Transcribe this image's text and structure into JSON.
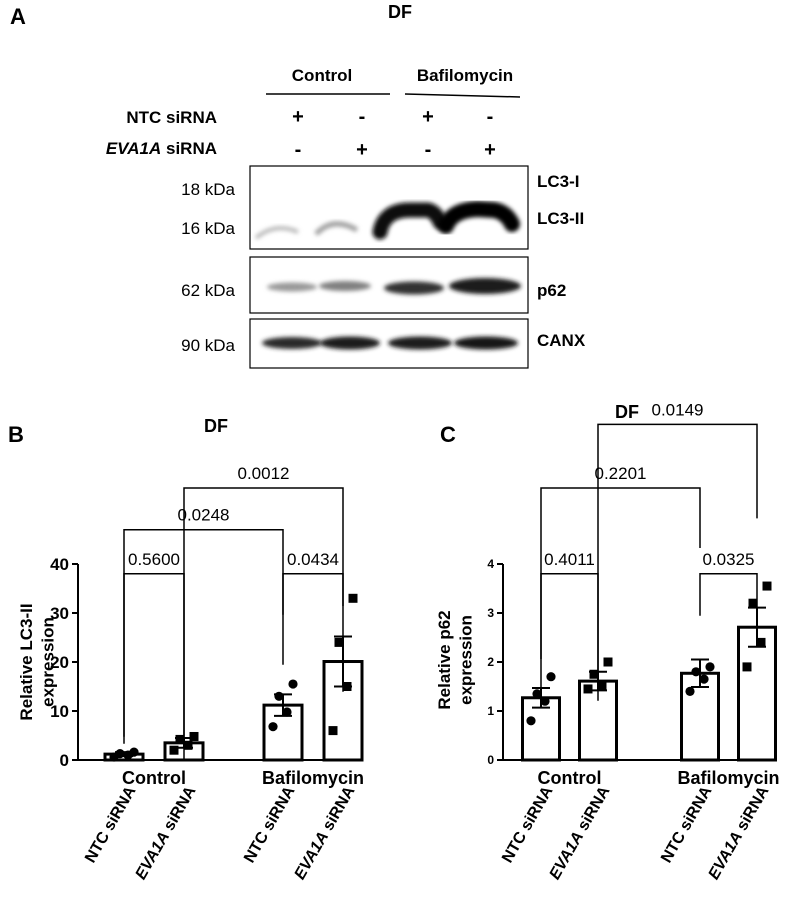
{
  "figure": {
    "panelA": {
      "letter": "A",
      "title": "DF",
      "groups": [
        "Control",
        "Bafilomycin"
      ],
      "row_labels": {
        "ntc": "NTC siRNA",
        "eva_italic": "EVA1A",
        "eva_rest": " siRNA"
      },
      "ntc_signs": [
        "+",
        "-",
        "+",
        "-"
      ],
      "eva_signs": [
        "-",
        "+",
        "-",
        "+"
      ],
      "mw": [
        "18 kDa",
        "16 kDa",
        "62 kDa",
        "90 kDa"
      ],
      "band_labels": [
        "LC3-I",
        "LC3-II",
        "p62",
        "CANX"
      ]
    },
    "panelB": {
      "letter": "B"
    },
    "panelC": {
      "letter": "C"
    }
  },
  "chart_data": [
    {
      "type": "bar",
      "panel": "B",
      "title": "DF",
      "ylabel_lines": [
        "Relative LC3-II",
        "expression"
      ],
      "ylim": [
        0,
        40
      ],
      "yticks": [
        "0",
        "10",
        "20",
        "30",
        "40"
      ],
      "group_labels": [
        "Control",
        "Bafilomycin"
      ],
      "categories": [
        "NTC siRNA",
        "EVA1A siRNA",
        "NTC siRNA",
        "EVA1A siRNA"
      ],
      "cat_italic": [
        "",
        "EVA1A",
        "",
        "EVA1A"
      ],
      "cat_rest": [
        "NTC siRNA",
        " siRNA",
        "NTC siRNA",
        " siRNA"
      ],
      "values": [
        1.2,
        3.5,
        11.2,
        20.1
      ],
      "sem": [
        0.4,
        1.0,
        2.2,
        5.1
      ],
      "points": [
        [
          0.6,
          1.0,
          1.3,
          1.6
        ],
        [
          2.0,
          3.0,
          4.2,
          4.8
        ],
        [
          6.8,
          9.8,
          13.0,
          15.5
        ],
        [
          6.0,
          15.0,
          24.0,
          33.0
        ]
      ],
      "markers": [
        "circle",
        "square",
        "circle",
        "square"
      ],
      "comparisons": [
        {
          "from": 0,
          "to": 1,
          "label": "0.5600",
          "y": 38
        },
        {
          "from": 2,
          "to": 3,
          "label": "0.0434",
          "y": 38
        },
        {
          "from": 0,
          "to": 2,
          "label": "0.0248",
          "y": 47
        },
        {
          "from": 1,
          "to": 3,
          "label": "0.0012",
          "y": 55.5
        }
      ]
    },
    {
      "type": "bar",
      "panel": "C",
      "title": "DF",
      "ylabel_lines": [
        "Relative p62",
        "expression"
      ],
      "ylim": [
        0,
        4
      ],
      "yticks": [
        "0",
        "1",
        "2",
        "3",
        "4"
      ],
      "group_labels": [
        "Control",
        "Bafilomycin"
      ],
      "categories": [
        "NTC siRNA",
        "EVA1A siRNA",
        "NTC siRNA",
        "EVA1A siRNA"
      ],
      "cat_italic": [
        "",
        "EVA1A",
        "",
        "EVA1A"
      ],
      "cat_rest": [
        "NTC siRNA",
        " siRNA",
        "NTC siRNA",
        " siRNA"
      ],
      "values": [
        1.27,
        1.61,
        1.77,
        2.71
      ],
      "sem": [
        0.2,
        0.19,
        0.28,
        0.4
      ],
      "points": [
        [
          0.8,
          1.2,
          1.35,
          1.7
        ],
        [
          1.45,
          1.5,
          1.75,
          2.0
        ],
        [
          1.4,
          1.65,
          1.8,
          1.9
        ],
        [
          1.9,
          2.4,
          3.2,
          3.55
        ]
      ],
      "markers": [
        "circle",
        "square",
        "circle",
        "square"
      ],
      "comparisons": [
        {
          "from": 0,
          "to": 1,
          "label": "0.4011",
          "y": 3.8
        },
        {
          "from": 2,
          "to": 3,
          "label": "0.0325",
          "y": 3.8
        },
        {
          "from": 0,
          "to": 2,
          "label": "0.2201",
          "y": 5.55
        },
        {
          "from": 1,
          "to": 3,
          "label": "0.0149",
          "y": 6.85
        }
      ]
    }
  ]
}
